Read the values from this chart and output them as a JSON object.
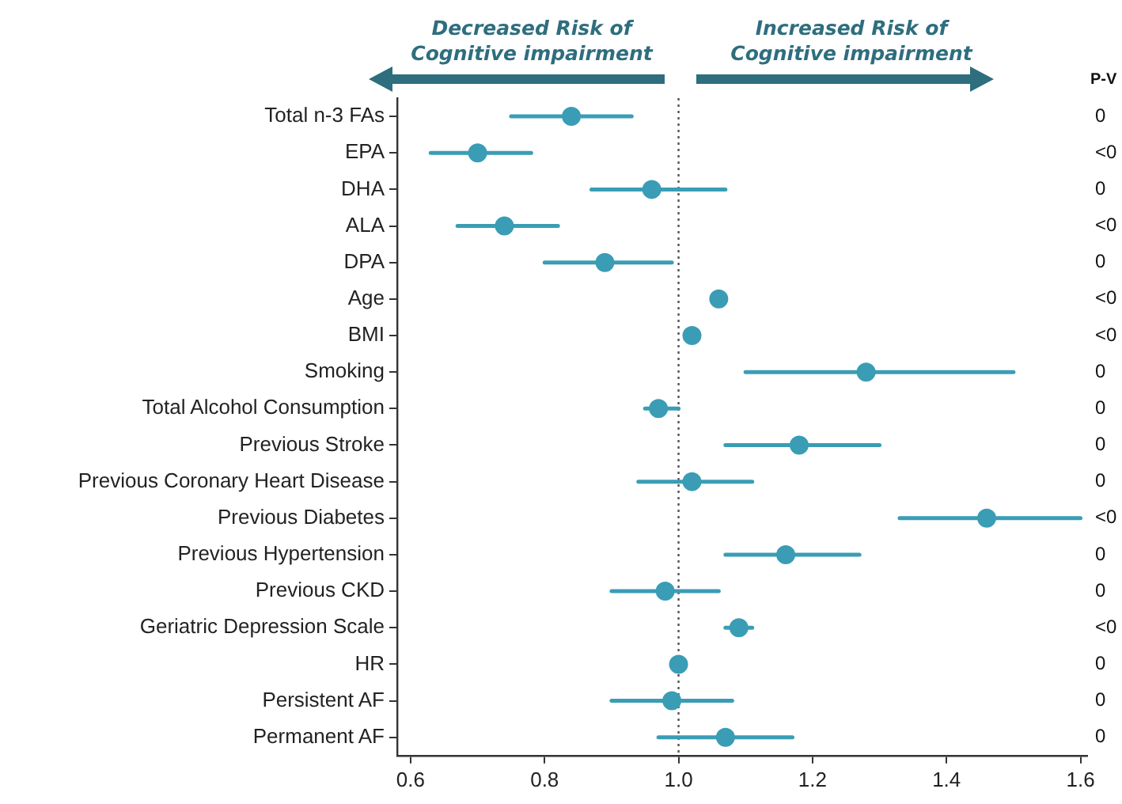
{
  "chart_data": {
    "type": "scatter",
    "orientation": "horizontal",
    "marker": "circle",
    "grid": false,
    "categories": [
      "Total n-3 FAs",
      "EPA",
      "DHA",
      "ALA",
      "DPA",
      "Age",
      "BMI",
      "Smoking",
      "Total Alcohol Consumption",
      "Previous Stroke",
      "Previous Coronary Heart Disease",
      "Previous Diabetes",
      "Previous Hypertension",
      "Previous CKD",
      "Geriatric Depression Scale",
      "HR",
      "Persistent AF",
      "Permanent AF"
    ],
    "series": [
      {
        "color": "#3a9db5",
        "values": [
          0.84,
          0.7,
          0.96,
          0.74,
          0.89,
          1.06,
          1.02,
          1.28,
          0.97,
          1.18,
          1.02,
          1.46,
          1.16,
          0.98,
          1.09,
          1.0,
          0.99,
          1.07
        ],
        "errors": [
          [
            0.75,
            0.93
          ],
          [
            0.63,
            0.78
          ],
          [
            0.87,
            1.07
          ],
          [
            0.67,
            0.82
          ],
          [
            0.8,
            0.99
          ],
          null,
          null,
          [
            1.1,
            1.5
          ],
          [
            0.95,
            1.0
          ],
          [
            1.07,
            1.3
          ],
          [
            0.94,
            1.11
          ],
          [
            1.33,
            1.6
          ],
          [
            1.07,
            1.27
          ],
          [
            0.9,
            1.06
          ],
          [
            1.07,
            1.11
          ],
          null,
          [
            0.9,
            1.08
          ],
          [
            0.97,
            1.17
          ]
        ]
      }
    ],
    "xlim": [
      0.58,
      1.61
    ],
    "xticks": [
      {
        "value": 0.6,
        "label": "0.6"
      },
      {
        "value": 0.8,
        "label": "0.8"
      },
      {
        "value": 1.0,
        "label": "1.0"
      },
      {
        "value": 1.2,
        "label": "1.2"
      },
      {
        "value": 1.4,
        "label": "1.4"
      },
      {
        "value": 1.6,
        "label": "1.6"
      }
    ],
    "ref_lines": [
      {
        "axis": "x",
        "value": 1,
        "color": "#555555",
        "line_style": "dotted"
      }
    ],
    "annotations": [
      "Decreased Risk of\nCognitive impairment",
      "Increased Risk of\nCognitive impairment",
      "P-V",
      "0",
      "<0",
      "0",
      "<0",
      "0",
      "<0",
      "<0",
      "0",
      "0",
      "0",
      "0",
      "<0",
      "0",
      "0",
      "<0",
      "0",
      "0",
      "0"
    ]
  }
}
